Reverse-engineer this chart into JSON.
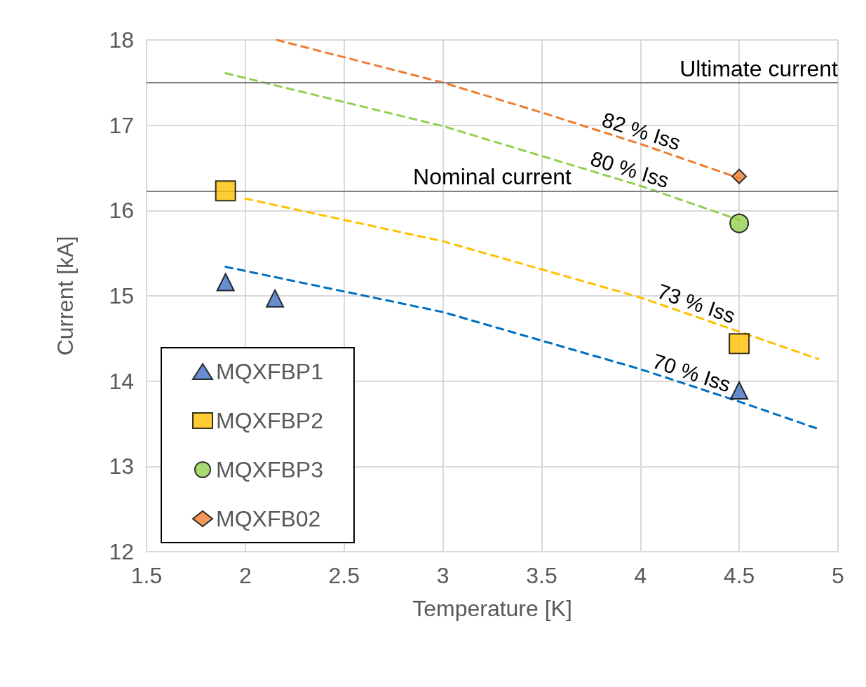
{
  "chart_data": {
    "type": "scatter",
    "xlabel": "Temperature [K]",
    "ylabel": "Current [kA]",
    "xlim": [
      1.5,
      5
    ],
    "xticks": [
      1.5,
      2,
      2.5,
      3,
      3.5,
      4,
      4.5,
      5
    ],
    "ylim": [
      12,
      18
    ],
    "yticks": [
      12,
      13,
      14,
      15,
      16,
      17,
      18
    ],
    "grid": true,
    "legend": "bottom left",
    "series": [
      {
        "name": "MQXFBP1",
        "color": "#4472c4",
        "marker": "triangle",
        "x": [
          1.9,
          2.15,
          4.5
        ],
        "values": [
          15.16,
          14.97,
          13.89
        ]
      },
      {
        "name": "MQXFBP2",
        "color": "#ffc000",
        "marker": "square",
        "x": [
          1.9,
          4.5
        ],
        "values": [
          16.23,
          14.44
        ]
      },
      {
        "name": "MQXFBP3",
        "color": "#92d050",
        "marker": "circle",
        "x": [
          4.5
        ],
        "values": [
          15.85
        ]
      },
      {
        "name": "MQXFB02",
        "color": "#ed7d31",
        "marker": "diamond",
        "x": [
          4.5
        ],
        "values": [
          16.4
        ]
      },
      {
        "type": "line",
        "color": "#ed7d31",
        "line_style": "dashed",
        "marker": "none",
        "x": [
          2.16,
          3.0,
          3.5,
          4.0,
          4.5
        ],
        "values": [
          18.0,
          17.5,
          17.15,
          16.78,
          16.38
        ]
      },
      {
        "type": "line",
        "color": "#92d050",
        "line_style": "dashed",
        "marker": "none",
        "x": [
          1.9,
          3.0,
          4.0,
          4.5
        ],
        "values": [
          17.61,
          16.99,
          16.29,
          15.89
        ]
      },
      {
        "type": "line",
        "color": "#ffc000",
        "line_style": "dashed",
        "marker": "none",
        "x": [
          2.0,
          3.0,
          4.0,
          4.5,
          4.9
        ],
        "values": [
          16.14,
          15.64,
          14.98,
          14.58,
          14.26
        ]
      },
      {
        "type": "line",
        "color": "#0070c0",
        "line_style": "dashed",
        "marker": "none",
        "x": [
          1.9,
          3.0,
          4.0,
          4.5,
          4.9
        ],
        "values": [
          15.34,
          14.81,
          14.14,
          13.76,
          13.44
        ]
      }
    ],
    "ref_lines": [
      {
        "axis": "y",
        "value": 17.5,
        "label": "Ultimate current",
        "color": "#808080"
      },
      {
        "axis": "y",
        "value": 16.23,
        "label": "Nominal current",
        "color": "#808080"
      }
    ],
    "annotations": [
      "82 % Iss",
      "80 % Iss",
      "73 % Iss",
      "70 % Iss"
    ]
  }
}
